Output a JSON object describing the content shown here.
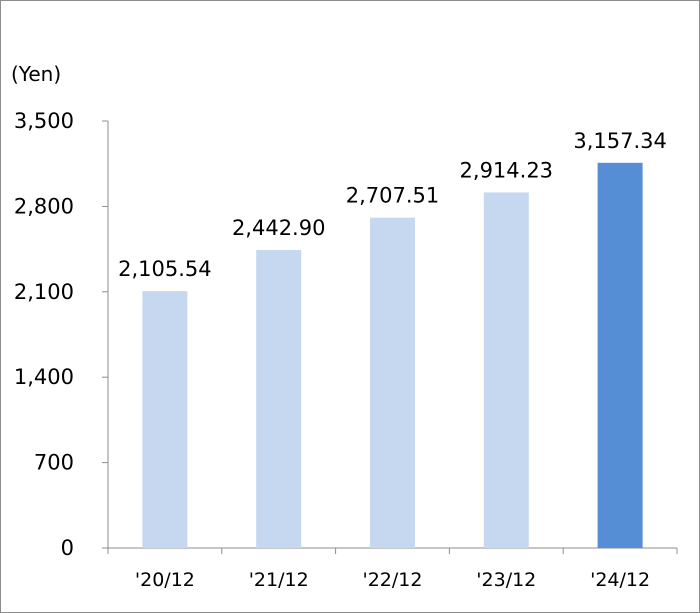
{
  "chart_data": {
    "type": "bar",
    "unit_label": "(Yen)",
    "categories": [
      "'20/12",
      "'21/12",
      "'22/12",
      "'23/12",
      "'24/12"
    ],
    "values": [
      2105.54,
      2442.9,
      2707.51,
      2914.23,
      3157.34
    ],
    "value_labels": [
      "2,105.54",
      "2,442.90",
      "2,707.51",
      "2,914.23",
      "3,157.34"
    ],
    "ylim": [
      0,
      3500
    ],
    "yticks": [
      0,
      700,
      1400,
      2100,
      2800,
      3500
    ],
    "ytick_labels": [
      "0",
      "700",
      "1,400",
      "2,100",
      "2,800",
      "3,500"
    ],
    "grid": false,
    "legend": "none",
    "colors": {
      "bar": "#c5d8f0",
      "highlight_bar": "#558ed5",
      "axis": "#8c8c8c"
    },
    "highlight_index": 4
  }
}
